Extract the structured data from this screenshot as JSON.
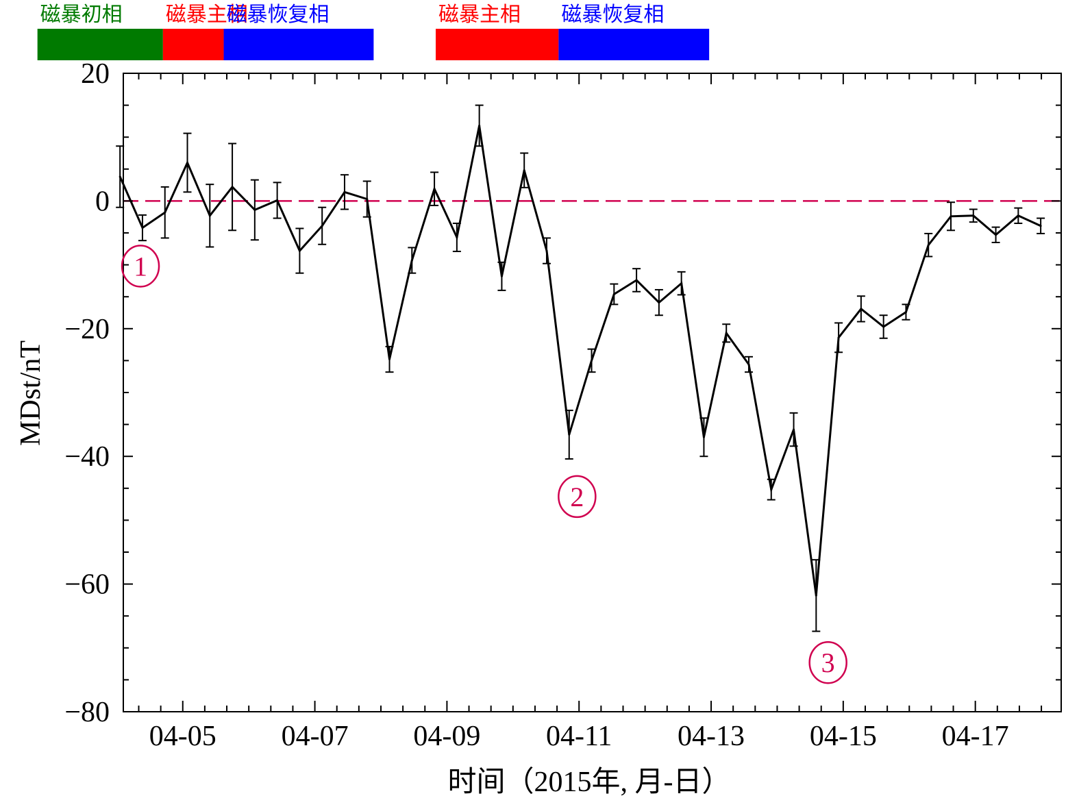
{
  "chart_data": {
    "type": "line",
    "title": "",
    "xlabel": "时间（2015年, 月-日）",
    "ylabel": "MDst/nT",
    "xlim": [
      -0.9,
      13.3
    ],
    "ylim": [
      -80,
      20
    ],
    "x_tick_labels": [
      {
        "x": 0,
        "label": "04-05"
      },
      {
        "x": 2,
        "label": "04-07"
      },
      {
        "x": 4,
        "label": "04-09"
      },
      {
        "x": 6,
        "label": "04-11"
      },
      {
        "x": 8,
        "label": "04-13"
      },
      {
        "x": 10,
        "label": "04-15"
      },
      {
        "x": 12,
        "label": "04-17"
      }
    ],
    "y_ticks": [
      -80,
      -60,
      -40,
      -20,
      0,
      20
    ],
    "y_tick_labels": [
      "−80",
      "−60",
      "−40",
      "−20",
      "0",
      "20"
    ],
    "x_minor_step": 0.333333,
    "y_minor_step": 5,
    "reference_line": {
      "y": 0,
      "style": "dashed",
      "color": "#d0004f"
    },
    "series": [
      {
        "color": "#000000",
        "x": [
          -0.95,
          -0.61,
          -0.27,
          0.07,
          0.41,
          0.75,
          1.09,
          1.43,
          1.77,
          2.11,
          2.45,
          2.79,
          3.13,
          3.47,
          3.81,
          4.15,
          4.49,
          4.83,
          5.17,
          5.51,
          5.85,
          6.19,
          6.53,
          6.87,
          7.21,
          7.55,
          7.89,
          8.23,
          8.57,
          8.91,
          9.25,
          9.59,
          9.93,
          10.27,
          10.61,
          10.95,
          11.29,
          11.63,
          11.97,
          12.31,
          12.65,
          12.99
        ],
        "values": [
          3.8,
          -4.2,
          -1.8,
          6.0,
          -2.3,
          2.2,
          -1.4,
          0.1,
          -7.8,
          -3.9,
          1.4,
          0.3,
          -24.8,
          -9.3,
          1.9,
          -5.7,
          11.8,
          -11.8,
          4.8,
          -7.8,
          -36.6,
          -25.0,
          -14.6,
          -12.4,
          -15.9,
          -12.9,
          -37.0,
          -20.7,
          -25.6,
          -45.2,
          -35.8,
          -61.8,
          -21.4,
          -16.9,
          -19.7,
          -17.4,
          -6.9,
          -2.4,
          -2.3,
          -5.3,
          -2.3,
          -3.9
        ],
        "errors": [
          4.8,
          2.0,
          4.0,
          4.6,
          4.9,
          6.8,
          4.7,
          2.8,
          3.5,
          2.9,
          2.7,
          2.8,
          2.0,
          2.0,
          2.6,
          2.2,
          3.2,
          2.2,
          2.7,
          2.0,
          3.8,
          1.8,
          1.6,
          1.8,
          2.0,
          1.8,
          3.0,
          1.4,
          1.2,
          1.6,
          2.6,
          5.6,
          2.3,
          2.0,
          1.8,
          1.2,
          1.8,
          2.2,
          1.0,
          1.2,
          1.2,
          1.2
        ]
      }
    ],
    "annotations": [
      {
        "text": "1",
        "x": -0.64,
        "y": -10.2
      },
      {
        "text": "2",
        "x": 5.97,
        "y": -46.3
      },
      {
        "text": "3",
        "x": 9.77,
        "y": -72.3
      }
    ],
    "phase_bands": [
      {
        "label": "磁暴初相",
        "color": "#007a00",
        "start": -2.2,
        "end": -0.3
      },
      {
        "label": "磁暴主相",
        "color": "#ff0000",
        "start": -0.3,
        "end": 0.62
      },
      {
        "label": "磁暴恢复相",
        "color": "#0000ff",
        "start": 0.62,
        "end": 2.89
      },
      {
        "label": "磁暴主相",
        "color": "#ff0000",
        "start": 3.83,
        "end": 5.69
      },
      {
        "label": "磁暴恢复相",
        "color": "#0000ff",
        "start": 5.69,
        "end": 7.97
      }
    ]
  }
}
